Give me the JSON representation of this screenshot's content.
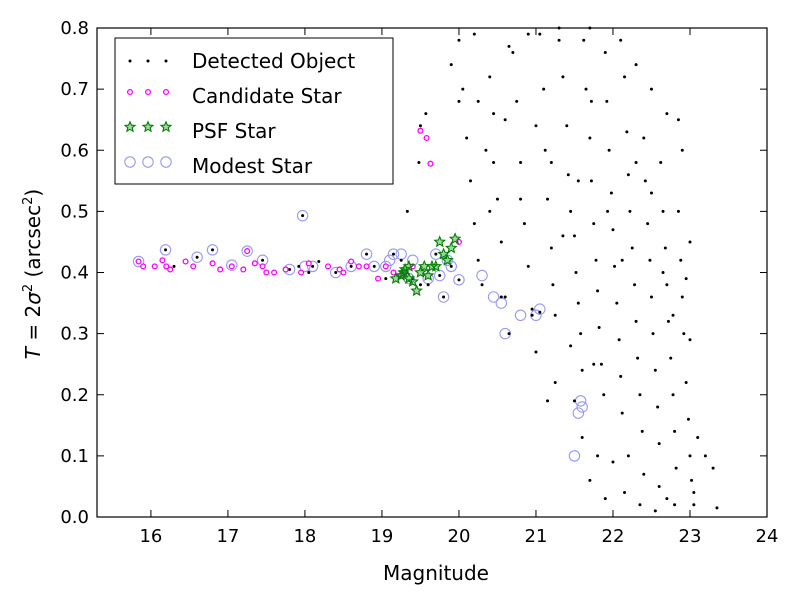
{
  "chart_data": {
    "type": "scatter",
    "title": "",
    "xlabel": "Magnitude",
    "ylabel_prefix": "T = 2",
    "ylabel_sigma": "σ",
    "ylabel_sup": "2",
    "ylabel_unit": " (arcsec",
    "ylabel_unit_sup": "2",
    "ylabel_close": ")",
    "xlim": [
      15.3,
      24
    ],
    "ylim": [
      0,
      0.8
    ],
    "xticks": [
      16,
      17,
      18,
      19,
      20,
      21,
      22,
      23,
      24
    ],
    "yticks": [
      0.0,
      0.1,
      0.2,
      0.3,
      0.4,
      0.5,
      0.6,
      0.7,
      0.8
    ],
    "ytick_labels": [
      "0.0",
      "0.1",
      "0.2",
      "0.3",
      "0.4",
      "0.5",
      "0.6",
      "0.7",
      "0.8"
    ],
    "grid": false,
    "legend_position": "top-left",
    "series": [
      {
        "name": "Detected Object",
        "marker": "dot",
        "color": "#000000",
        "points": [
          [
            15.84,
            0.418
          ],
          [
            16.05,
            0.41
          ],
          [
            16.19,
            0.437
          ],
          [
            16.3,
            0.41
          ],
          [
            16.6,
            0.425
          ],
          [
            16.8,
            0.437
          ],
          [
            17.05,
            0.412
          ],
          [
            17.25,
            0.435
          ],
          [
            17.45,
            0.42
          ],
          [
            17.6,
            0.4
          ],
          [
            17.8,
            0.405
          ],
          [
            17.92,
            0.41
          ],
          [
            17.97,
            0.493
          ],
          [
            18.05,
            0.4
          ],
          [
            18.1,
            0.41
          ],
          [
            18.18,
            0.418
          ],
          [
            18.4,
            0.4
          ],
          [
            18.6,
            0.41
          ],
          [
            18.8,
            0.43
          ],
          [
            18.9,
            0.41
          ],
          [
            19.05,
            0.39
          ],
          [
            19.15,
            0.43
          ],
          [
            19.25,
            0.42
          ],
          [
            19.33,
            0.5
          ],
          [
            19.4,
            0.39
          ],
          [
            19.5,
            0.38
          ],
          [
            19.6,
            0.38
          ],
          [
            19.7,
            0.43
          ],
          [
            19.75,
            0.395
          ],
          [
            19.8,
            0.36
          ],
          [
            19.9,
            0.41
          ],
          [
            20.0,
            0.388
          ],
          [
            19.48,
            0.58
          ],
          [
            19.5,
            0.64
          ],
          [
            19.57,
            0.66
          ],
          [
            19.9,
            0.74
          ],
          [
            20.0,
            0.78
          ],
          [
            20.05,
            0.7
          ],
          [
            20.1,
            0.62
          ],
          [
            20.15,
            0.55
          ],
          [
            20.2,
            0.48
          ],
          [
            20.25,
            0.42
          ],
          [
            20.3,
            0.38
          ],
          [
            20.35,
            0.6
          ],
          [
            20.4,
            0.72
          ],
          [
            20.45,
            0.66
          ],
          [
            20.5,
            0.52
          ],
          [
            20.55,
            0.45
          ],
          [
            20.6,
            0.36
          ],
          [
            20.65,
            0.3
          ],
          [
            20.7,
            0.76
          ],
          [
            20.75,
            0.68
          ],
          [
            20.8,
            0.58
          ],
          [
            20.85,
            0.48
          ],
          [
            20.9,
            0.41
          ],
          [
            20.95,
            0.34
          ],
          [
            21.0,
            0.27
          ],
          [
            21.05,
            0.79
          ],
          [
            21.1,
            0.7
          ],
          [
            21.12,
            0.6
          ],
          [
            21.15,
            0.52
          ],
          [
            21.2,
            0.44
          ],
          [
            21.22,
            0.38
          ],
          [
            21.25,
            0.33
          ],
          [
            21.3,
            0.78
          ],
          [
            21.35,
            0.72
          ],
          [
            21.4,
            0.64
          ],
          [
            21.42,
            0.56
          ],
          [
            21.45,
            0.5
          ],
          [
            21.5,
            0.46
          ],
          [
            21.52,
            0.4
          ],
          [
            21.55,
            0.35
          ],
          [
            21.58,
            0.3
          ],
          [
            21.6,
            0.24
          ],
          [
            21.62,
            0.78
          ],
          [
            21.65,
            0.7
          ],
          [
            21.7,
            0.62
          ],
          [
            21.72,
            0.55
          ],
          [
            21.75,
            0.48
          ],
          [
            21.78,
            0.42
          ],
          [
            21.8,
            0.37
          ],
          [
            21.82,
            0.31
          ],
          [
            21.85,
            0.25
          ],
          [
            21.88,
            0.2
          ],
          [
            21.9,
            0.76
          ],
          [
            21.92,
            0.68
          ],
          [
            21.95,
            0.6
          ],
          [
            21.98,
            0.53
          ],
          [
            22.0,
            0.47
          ],
          [
            22.02,
            0.41
          ],
          [
            22.05,
            0.35
          ],
          [
            22.08,
            0.29
          ],
          [
            22.1,
            0.23
          ],
          [
            22.12,
            0.17
          ],
          [
            22.15,
            0.72
          ],
          [
            22.18,
            0.63
          ],
          [
            22.2,
            0.56
          ],
          [
            22.22,
            0.5
          ],
          [
            22.25,
            0.44
          ],
          [
            22.28,
            0.38
          ],
          [
            22.3,
            0.32
          ],
          [
            22.32,
            0.26
          ],
          [
            22.35,
            0.2
          ],
          [
            22.38,
            0.14
          ],
          [
            22.4,
            0.62
          ],
          [
            22.42,
            0.55
          ],
          [
            22.45,
            0.48
          ],
          [
            22.48,
            0.42
          ],
          [
            22.5,
            0.36
          ],
          [
            22.52,
            0.3
          ],
          [
            22.55,
            0.24
          ],
          [
            22.58,
            0.18
          ],
          [
            22.6,
            0.12
          ],
          [
            22.62,
            0.58
          ],
          [
            22.65,
            0.5
          ],
          [
            22.68,
            0.44
          ],
          [
            22.7,
            0.38
          ],
          [
            22.72,
            0.32
          ],
          [
            22.75,
            0.26
          ],
          [
            22.78,
            0.2
          ],
          [
            22.8,
            0.14
          ],
          [
            22.82,
            0.08
          ],
          [
            22.85,
            0.5
          ],
          [
            22.88,
            0.42
          ],
          [
            22.9,
            0.36
          ],
          [
            22.92,
            0.3
          ],
          [
            22.95,
            0.22
          ],
          [
            22.98,
            0.16
          ],
          [
            23.0,
            0.1
          ],
          [
            23.02,
            0.06
          ],
          [
            23.05,
            0.04
          ],
          [
            23.1,
            0.13
          ],
          [
            23.2,
            0.1
          ],
          [
            23.3,
            0.08
          ],
          [
            23.35,
            0.015
          ],
          [
            22.9,
            0.6
          ],
          [
            22.7,
            0.66
          ],
          [
            22.5,
            0.7
          ],
          [
            22.3,
            0.74
          ],
          [
            22.1,
            0.78
          ],
          [
            21.7,
            0.8
          ],
          [
            21.3,
            0.8
          ],
          [
            20.9,
            0.79
          ],
          [
            20.65,
            0.77
          ],
          [
            20.2,
            0.79
          ],
          [
            22.6,
            0.05
          ],
          [
            22.7,
            0.03
          ],
          [
            22.4,
            0.07
          ],
          [
            22.2,
            0.1
          ],
          [
            22.8,
            0.02
          ],
          [
            21.6,
            0.13
          ],
          [
            21.8,
            0.1
          ],
          [
            21.7,
            0.06
          ],
          [
            21.9,
            0.03
          ],
          [
            22.0,
            0.09
          ],
          [
            22.15,
            0.04
          ],
          [
            22.35,
            0.02
          ],
          [
            22.55,
            0.01
          ],
          [
            23.05,
            0.02
          ],
          [
            21.75,
            0.25
          ],
          [
            21.5,
            0.19
          ],
          [
            21.25,
            0.22
          ],
          [
            21.15,
            0.19
          ],
          [
            21.45,
            0.28
          ],
          [
            20.55,
            0.36
          ],
          [
            20.95,
            0.33
          ],
          [
            21.05,
            0.335
          ],
          [
            23.0,
            0.29
          ],
          [
            23.0,
            0.45
          ],
          [
            22.85,
            0.65
          ],
          [
            20.45,
            0.58
          ],
          [
            20.25,
            0.68
          ],
          [
            20.0,
            0.68
          ],
          [
            20.4,
            0.5
          ],
          [
            20.6,
            0.65
          ],
          [
            20.8,
            0.52
          ],
          [
            21.0,
            0.64
          ],
          [
            21.2,
            0.58
          ],
          [
            21.35,
            0.46
          ],
          [
            21.55,
            0.55
          ],
          [
            21.72,
            0.68
          ],
          [
            21.93,
            0.5
          ],
          [
            22.12,
            0.42
          ],
          [
            22.3,
            0.58
          ],
          [
            22.5,
            0.53
          ],
          [
            22.65,
            0.4
          ],
          [
            22.78,
            0.33
          ],
          [
            22.95,
            0.39
          ]
        ]
      },
      {
        "name": "Candidate Star",
        "marker": "circle-small",
        "color": "#ff00ff",
        "points": [
          [
            15.84,
            0.418
          ],
          [
            15.9,
            0.41
          ],
          [
            16.05,
            0.41
          ],
          [
            16.15,
            0.42
          ],
          [
            16.2,
            0.41
          ],
          [
            16.25,
            0.405
          ],
          [
            16.45,
            0.418
          ],
          [
            16.55,
            0.41
          ],
          [
            16.8,
            0.415
          ],
          [
            16.9,
            0.405
          ],
          [
            17.05,
            0.41
          ],
          [
            17.2,
            0.405
          ],
          [
            17.25,
            0.435
          ],
          [
            17.35,
            0.415
          ],
          [
            17.45,
            0.41
          ],
          [
            17.5,
            0.4
          ],
          [
            17.6,
            0.4
          ],
          [
            17.75,
            0.405
          ],
          [
            17.95,
            0.4
          ],
          [
            18.05,
            0.415
          ],
          [
            18.3,
            0.41
          ],
          [
            18.45,
            0.405
          ],
          [
            18.5,
            0.4
          ],
          [
            18.6,
            0.418
          ],
          [
            18.7,
            0.41
          ],
          [
            18.8,
            0.41
          ],
          [
            18.95,
            0.39
          ],
          [
            19.05,
            0.41
          ],
          [
            19.15,
            0.4
          ],
          [
            19.25,
            0.395
          ],
          [
            19.3,
            0.4
          ],
          [
            19.4,
            0.41
          ],
          [
            19.5,
            0.632
          ],
          [
            19.58,
            0.62
          ],
          [
            19.63,
            0.578
          ],
          [
            20.0,
            0.45
          ]
        ]
      },
      {
        "name": "PSF Star",
        "marker": "star",
        "color": "#008000",
        "points": [
          [
            19.18,
            0.39
          ],
          [
            19.25,
            0.395
          ],
          [
            19.3,
            0.405
          ],
          [
            19.35,
            0.41
          ],
          [
            19.4,
            0.385
          ],
          [
            19.45,
            0.37
          ],
          [
            19.5,
            0.4
          ],
          [
            19.55,
            0.41
          ],
          [
            19.65,
            0.41
          ],
          [
            19.7,
            0.41
          ],
          [
            19.75,
            0.45
          ],
          [
            19.8,
            0.43
          ],
          [
            19.85,
            0.42
          ],
          [
            19.9,
            0.44
          ],
          [
            19.95,
            0.455
          ],
          [
            19.35,
            0.39
          ],
          [
            19.28,
            0.4
          ],
          [
            19.6,
            0.395
          ]
        ]
      },
      {
        "name": "Modest Star",
        "marker": "open-circle",
        "color": "#9999ee",
        "points": [
          [
            15.84,
            0.418
          ],
          [
            16.19,
            0.437
          ],
          [
            16.6,
            0.425
          ],
          [
            16.8,
            0.437
          ],
          [
            17.05,
            0.412
          ],
          [
            17.25,
            0.435
          ],
          [
            17.45,
            0.42
          ],
          [
            17.8,
            0.405
          ],
          [
            17.97,
            0.493
          ],
          [
            18.0,
            0.41
          ],
          [
            18.1,
            0.41
          ],
          [
            18.4,
            0.4
          ],
          [
            18.6,
            0.41
          ],
          [
            18.8,
            0.43
          ],
          [
            18.9,
            0.41
          ],
          [
            19.05,
            0.41
          ],
          [
            19.1,
            0.42
          ],
          [
            19.15,
            0.43
          ],
          [
            19.25,
            0.43
          ],
          [
            19.35,
            0.39
          ],
          [
            19.4,
            0.42
          ],
          [
            19.6,
            0.39
          ],
          [
            19.7,
            0.43
          ],
          [
            19.75,
            0.395
          ],
          [
            19.8,
            0.36
          ],
          [
            19.85,
            0.42
          ],
          [
            19.9,
            0.41
          ],
          [
            20.0,
            0.388
          ],
          [
            20.3,
            0.395
          ],
          [
            20.45,
            0.36
          ],
          [
            20.55,
            0.35
          ],
          [
            20.6,
            0.3
          ],
          [
            20.8,
            0.33
          ],
          [
            21.0,
            0.33
          ],
          [
            21.05,
            0.34
          ],
          [
            21.5,
            0.1
          ],
          [
            21.55,
            0.17
          ],
          [
            21.58,
            0.19
          ],
          [
            21.6,
            0.18
          ]
        ]
      }
    ]
  }
}
